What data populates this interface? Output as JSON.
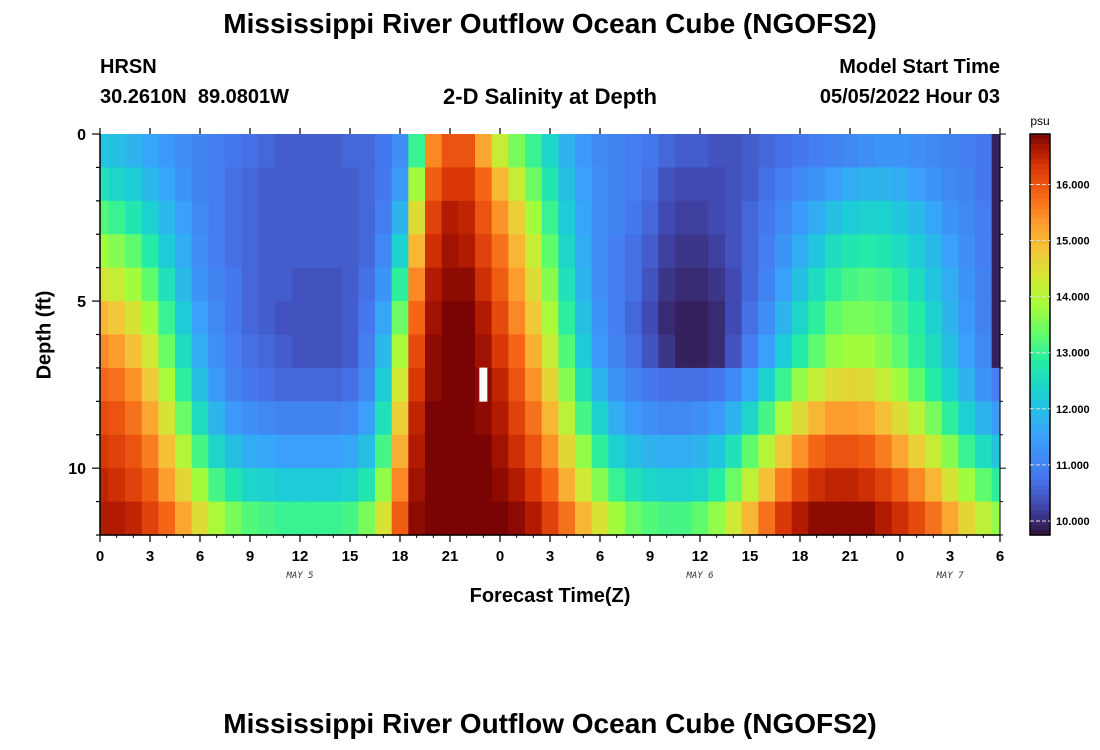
{
  "titles": {
    "top": "Mississippi River Outflow Ocean Cube (NGOFS2)",
    "bottom": "Mississippi River Outflow Ocean Cube (NGOFS2)"
  },
  "station": {
    "name": "HRSN",
    "coords": "30.2610N  89.0801W"
  },
  "model": {
    "label": "Model Start Time",
    "start": "05/05/2022 Hour 03"
  },
  "chart_data": {
    "type": "heatmap",
    "title": "2-D Salinity at Depth",
    "xlabel": "Forecast Time(Z)",
    "ylabel": "Depth (ft)",
    "x_ticks": [
      "0",
      "3",
      "6",
      "9",
      "12",
      "15",
      "18",
      "21",
      "0",
      "3",
      "6",
      "9",
      "12",
      "15",
      "18",
      "21",
      "0",
      "3",
      "6"
    ],
    "x_hours": [
      0,
      3,
      6,
      9,
      12,
      15,
      18,
      21,
      24,
      27,
      30,
      33,
      36,
      39,
      42,
      45,
      48,
      51,
      54
    ],
    "day_labels": [
      {
        "label": "MAY 5",
        "hour": 12
      },
      {
        "label": "MAY 6",
        "hour": 36
      },
      {
        "label": "MAY 7",
        "hour": 51
      }
    ],
    "x_range_hours": [
      0,
      54
    ],
    "y_ticks": [
      0,
      5,
      10
    ],
    "y_range_ft": [
      0,
      12
    ],
    "depth_levels_ft": [
      0.5,
      1.5,
      2.5,
      3.5,
      4.5,
      5.5,
      6.5,
      7.5,
      8.5,
      9.5,
      10.5,
      11.5
    ],
    "colorbar": {
      "units": "psu",
      "min": 9.75,
      "max": 16.9,
      "ticks": [
        "10.000",
        "11.000",
        "12.000",
        "13.000",
        "14.000",
        "15.000",
        "16.000"
      ],
      "tick_values": [
        10,
        11,
        12,
        13,
        14,
        15,
        16
      ]
    },
    "salinity_psu": {
      "hours": [
        0,
        1,
        2,
        3,
        4,
        5,
        6,
        7,
        8,
        9,
        10,
        11,
        12,
        13,
        14,
        15,
        16,
        17,
        18,
        19,
        20,
        21,
        22,
        23,
        24,
        25,
        26,
        27,
        28,
        29,
        30,
        31,
        32,
        33,
        34,
        35,
        36,
        37,
        38,
        39,
        40,
        41,
        42,
        43,
        44,
        45,
        46,
        47,
        48,
        49,
        50,
        51,
        52,
        53,
        54
      ],
      "rows": [
        [
          12.1,
          12.0,
          11.8,
          11.6,
          11.4,
          11.2,
          11.0,
          10.9,
          10.8,
          10.7,
          10.6,
          10.5,
          10.5,
          10.5,
          10.5,
          10.6,
          10.6,
          10.8,
          11.2,
          13.0,
          15.5,
          16.0,
          16.0,
          15.2,
          14.2,
          13.5,
          13.0,
          12.4,
          11.8,
          11.4,
          11.1,
          11.0,
          10.9,
          10.8,
          10.6,
          10.5,
          10.5,
          10.4,
          10.4,
          10.5,
          10.6,
          10.7,
          10.8,
          10.9,
          11.0,
          11.1,
          11.2,
          11.3,
          11.3,
          11.2,
          11.1,
          11.0,
          10.9,
          10.8,
          9.9
        ],
        [
          12.6,
          12.4,
          12.2,
          11.9,
          11.6,
          11.3,
          11.0,
          10.9,
          10.7,
          10.6,
          10.5,
          10.5,
          10.5,
          10.5,
          10.5,
          10.5,
          10.6,
          10.8,
          11.4,
          13.8,
          15.9,
          16.3,
          16.3,
          15.8,
          15.0,
          14.2,
          13.4,
          12.7,
          12.0,
          11.5,
          11.2,
          11.0,
          10.9,
          10.7,
          10.4,
          10.3,
          10.3,
          10.3,
          10.4,
          10.5,
          10.7,
          10.9,
          11.1,
          11.3,
          11.5,
          11.7,
          11.8,
          11.8,
          11.7,
          11.5,
          11.3,
          11.1,
          11.0,
          10.8,
          9.9
        ],
        [
          13.2,
          13.0,
          12.7,
          12.3,
          11.9,
          11.5,
          11.1,
          10.9,
          10.7,
          10.6,
          10.5,
          10.5,
          10.5,
          10.5,
          10.5,
          10.5,
          10.6,
          10.9,
          11.8,
          14.5,
          16.2,
          16.6,
          16.5,
          16.0,
          15.4,
          14.7,
          13.8,
          13.0,
          12.2,
          11.6,
          11.2,
          11.0,
          10.8,
          10.6,
          10.3,
          10.2,
          10.2,
          10.3,
          10.4,
          10.6,
          10.8,
          11.1,
          11.4,
          11.7,
          12.0,
          12.2,
          12.3,
          12.3,
          12.1,
          11.9,
          11.6,
          11.3,
          11.1,
          10.9,
          9.9
        ],
        [
          13.8,
          13.6,
          13.3,
          12.8,
          12.2,
          11.7,
          11.2,
          10.9,
          10.7,
          10.6,
          10.5,
          10.5,
          10.5,
          10.5,
          10.5,
          10.5,
          10.6,
          11.1,
          12.3,
          15.0,
          16.4,
          16.7,
          16.6,
          16.2,
          15.7,
          15.0,
          14.2,
          13.3,
          12.4,
          11.7,
          11.2,
          10.9,
          10.7,
          10.5,
          10.2,
          10.1,
          10.1,
          10.2,
          10.4,
          10.6,
          10.9,
          11.3,
          11.7,
          12.1,
          12.5,
          12.7,
          12.8,
          12.7,
          12.5,
          12.2,
          11.9,
          11.5,
          11.2,
          10.9,
          9.9
        ],
        [
          14.4,
          14.2,
          13.8,
          13.3,
          12.6,
          11.9,
          11.3,
          11.0,
          10.8,
          10.6,
          10.5,
          10.5,
          10.4,
          10.4,
          10.4,
          10.5,
          10.7,
          11.3,
          12.9,
          15.5,
          16.6,
          16.8,
          16.8,
          16.4,
          15.9,
          15.3,
          14.5,
          13.6,
          12.6,
          11.8,
          11.2,
          10.9,
          10.7,
          10.4,
          10.1,
          10.0,
          10.0,
          10.1,
          10.3,
          10.6,
          11.0,
          11.5,
          12.0,
          12.5,
          12.9,
          13.1,
          13.2,
          13.1,
          12.9,
          12.5,
          12.1,
          11.7,
          11.3,
          11.0,
          9.9
        ],
        [
          15.0,
          14.8,
          14.4,
          13.8,
          13.0,
          12.2,
          11.5,
          11.1,
          10.8,
          10.6,
          10.5,
          10.4,
          10.4,
          10.4,
          10.4,
          10.5,
          10.8,
          11.6,
          13.4,
          15.8,
          16.7,
          16.9,
          16.9,
          16.6,
          16.1,
          15.5,
          14.8,
          13.9,
          12.9,
          12.0,
          11.3,
          10.9,
          10.6,
          10.3,
          10.0,
          9.9,
          9.9,
          10.0,
          10.3,
          10.7,
          11.2,
          11.8,
          12.4,
          12.9,
          13.3,
          13.5,
          13.5,
          13.4,
          13.1,
          12.8,
          12.3,
          11.8,
          11.4,
          11.0,
          9.9
        ],
        [
          15.5,
          15.3,
          14.9,
          14.3,
          13.4,
          12.5,
          11.7,
          11.2,
          10.9,
          10.7,
          10.6,
          10.5,
          10.4,
          10.4,
          10.4,
          10.5,
          10.9,
          11.9,
          13.9,
          16.1,
          16.8,
          16.9,
          16.9,
          16.7,
          16.3,
          15.8,
          15.1,
          14.2,
          13.2,
          12.2,
          11.4,
          11.0,
          10.7,
          10.4,
          10.1,
          9.9,
          9.9,
          10.0,
          10.4,
          10.9,
          11.5,
          12.2,
          12.8,
          13.3,
          13.7,
          13.8,
          13.8,
          13.6,
          13.3,
          12.9,
          12.5,
          12.0,
          11.5,
          11.1,
          9.9
        ],
        [
          15.8,
          15.7,
          15.4,
          14.8,
          13.9,
          12.9,
          12.0,
          11.4,
          11.0,
          10.8,
          10.7,
          10.6,
          10.6,
          10.6,
          10.6,
          10.7,
          11.1,
          12.2,
          14.3,
          16.3,
          16.8,
          16.9,
          16.9,
          16.8,
          16.5,
          16.0,
          15.4,
          14.6,
          13.6,
          12.6,
          11.8,
          11.3,
          11.0,
          10.8,
          10.7,
          10.7,
          10.7,
          10.8,
          11.1,
          11.6,
          12.3,
          13.0,
          13.7,
          14.2,
          14.5,
          14.6,
          14.5,
          14.2,
          13.8,
          13.3,
          12.8,
          12.3,
          11.8,
          11.3,
          10.9
        ],
        [
          16.1,
          16.0,
          15.7,
          15.2,
          14.4,
          13.4,
          12.5,
          11.8,
          11.4,
          11.2,
          11.1,
          11.0,
          11.0,
          11.0,
          11.0,
          11.1,
          11.5,
          12.6,
          14.7,
          16.5,
          16.9,
          16.9,
          16.9,
          16.8,
          16.6,
          16.2,
          15.7,
          15.0,
          14.1,
          13.1,
          12.3,
          11.7,
          11.4,
          11.2,
          11.1,
          11.1,
          11.2,
          11.4,
          11.8,
          12.4,
          13.1,
          13.9,
          14.5,
          15.0,
          15.3,
          15.3,
          15.2,
          14.9,
          14.5,
          14.0,
          13.5,
          12.9,
          12.3,
          11.8,
          11.4
        ],
        [
          16.3,
          16.2,
          16.0,
          15.6,
          14.9,
          14.0,
          13.1,
          12.4,
          12.0,
          11.7,
          11.6,
          11.5,
          11.5,
          11.5,
          11.5,
          11.6,
          12.0,
          13.1,
          15.1,
          16.6,
          16.9,
          16.9,
          16.9,
          16.9,
          16.7,
          16.4,
          16.0,
          15.4,
          14.6,
          13.7,
          12.9,
          12.3,
          12.0,
          11.8,
          11.7,
          11.7,
          11.8,
          12.1,
          12.6,
          13.3,
          14.0,
          14.8,
          15.4,
          15.8,
          16.0,
          16.0,
          15.9,
          15.6,
          15.2,
          14.7,
          14.2,
          13.6,
          13.0,
          12.5,
          12.1
        ],
        [
          16.5,
          16.4,
          16.2,
          15.9,
          15.3,
          14.6,
          13.8,
          13.1,
          12.7,
          12.4,
          12.3,
          12.2,
          12.2,
          12.2,
          12.2,
          12.3,
          12.7,
          13.7,
          15.5,
          16.7,
          16.9,
          16.9,
          16.9,
          16.9,
          16.8,
          16.6,
          16.3,
          15.8,
          15.1,
          14.3,
          13.6,
          13.0,
          12.6,
          12.4,
          12.3,
          12.3,
          12.4,
          12.8,
          13.4,
          14.1,
          14.9,
          15.6,
          16.1,
          16.4,
          16.5,
          16.5,
          16.4,
          16.2,
          15.9,
          15.5,
          15.0,
          14.4,
          13.8,
          13.3,
          12.9
        ],
        [
          16.6,
          16.6,
          16.5,
          16.2,
          15.8,
          15.2,
          14.5,
          13.9,
          13.5,
          13.2,
          13.1,
          13.0,
          13.0,
          13.0,
          13.0,
          13.1,
          13.5,
          14.4,
          15.9,
          16.8,
          16.9,
          16.9,
          16.9,
          16.9,
          16.9,
          16.8,
          16.6,
          16.2,
          15.7,
          15.0,
          14.4,
          13.8,
          13.4,
          13.2,
          13.1,
          13.1,
          13.3,
          13.7,
          14.3,
          15.0,
          15.7,
          16.3,
          16.6,
          16.8,
          16.8,
          16.8,
          16.8,
          16.6,
          16.4,
          16.1,
          15.7,
          15.2,
          14.6,
          14.1,
          13.7
        ]
      ]
    },
    "annotation_marker": {
      "hour": 23,
      "depth_ft": 7.5
    }
  }
}
